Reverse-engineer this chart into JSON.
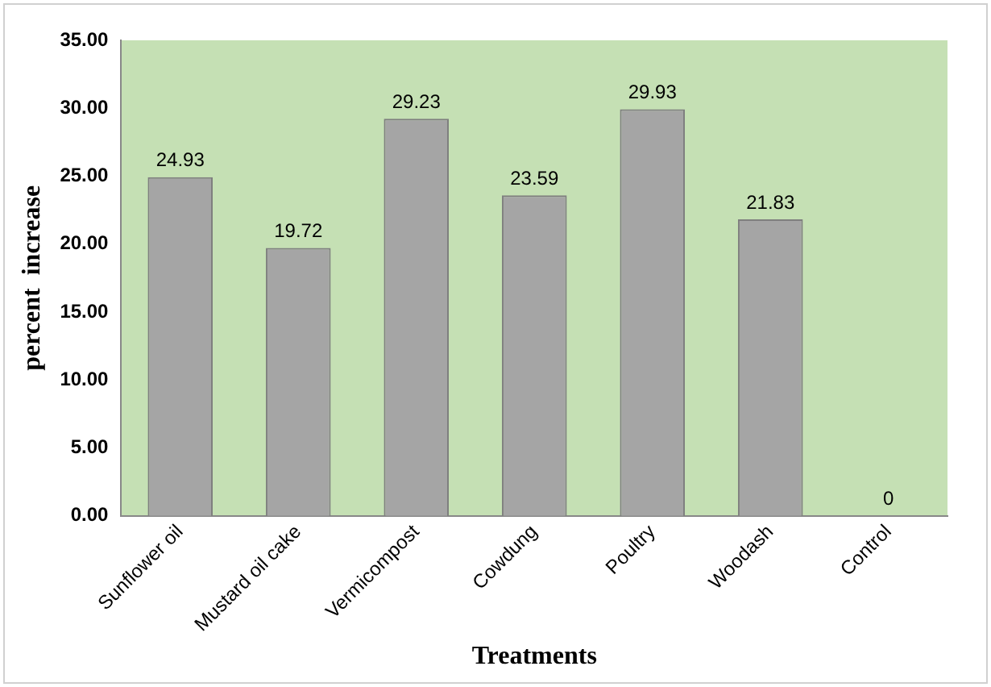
{
  "chart_data": {
    "type": "bar",
    "xlabel": "Treatments",
    "ylabel": "percent  increase",
    "categories": [
      "Sunflower oil",
      "Mustard oil cake",
      "Vermicompost",
      "Cowdung",
      "Poultry",
      "Woodash",
      "Control"
    ],
    "values": [
      24.93,
      19.72,
      29.23,
      23.59,
      29.93,
      21.83,
      0
    ],
    "color": "#a5a5a5",
    "ylim": [
      0,
      35
    ],
    "yticks": [
      {
        "value": 0,
        "label": "0.00"
      },
      {
        "value": 5,
        "label": "5.00"
      },
      {
        "value": 10,
        "label": "10.00"
      },
      {
        "value": 15,
        "label": "15.00"
      },
      {
        "value": 20,
        "label": "20.00"
      },
      {
        "value": 25,
        "label": "25.00"
      },
      {
        "value": 30,
        "label": "30.00"
      },
      {
        "value": 35,
        "label": "35.00"
      }
    ],
    "data_labels": true,
    "grid": false,
    "legend": false
  }
}
